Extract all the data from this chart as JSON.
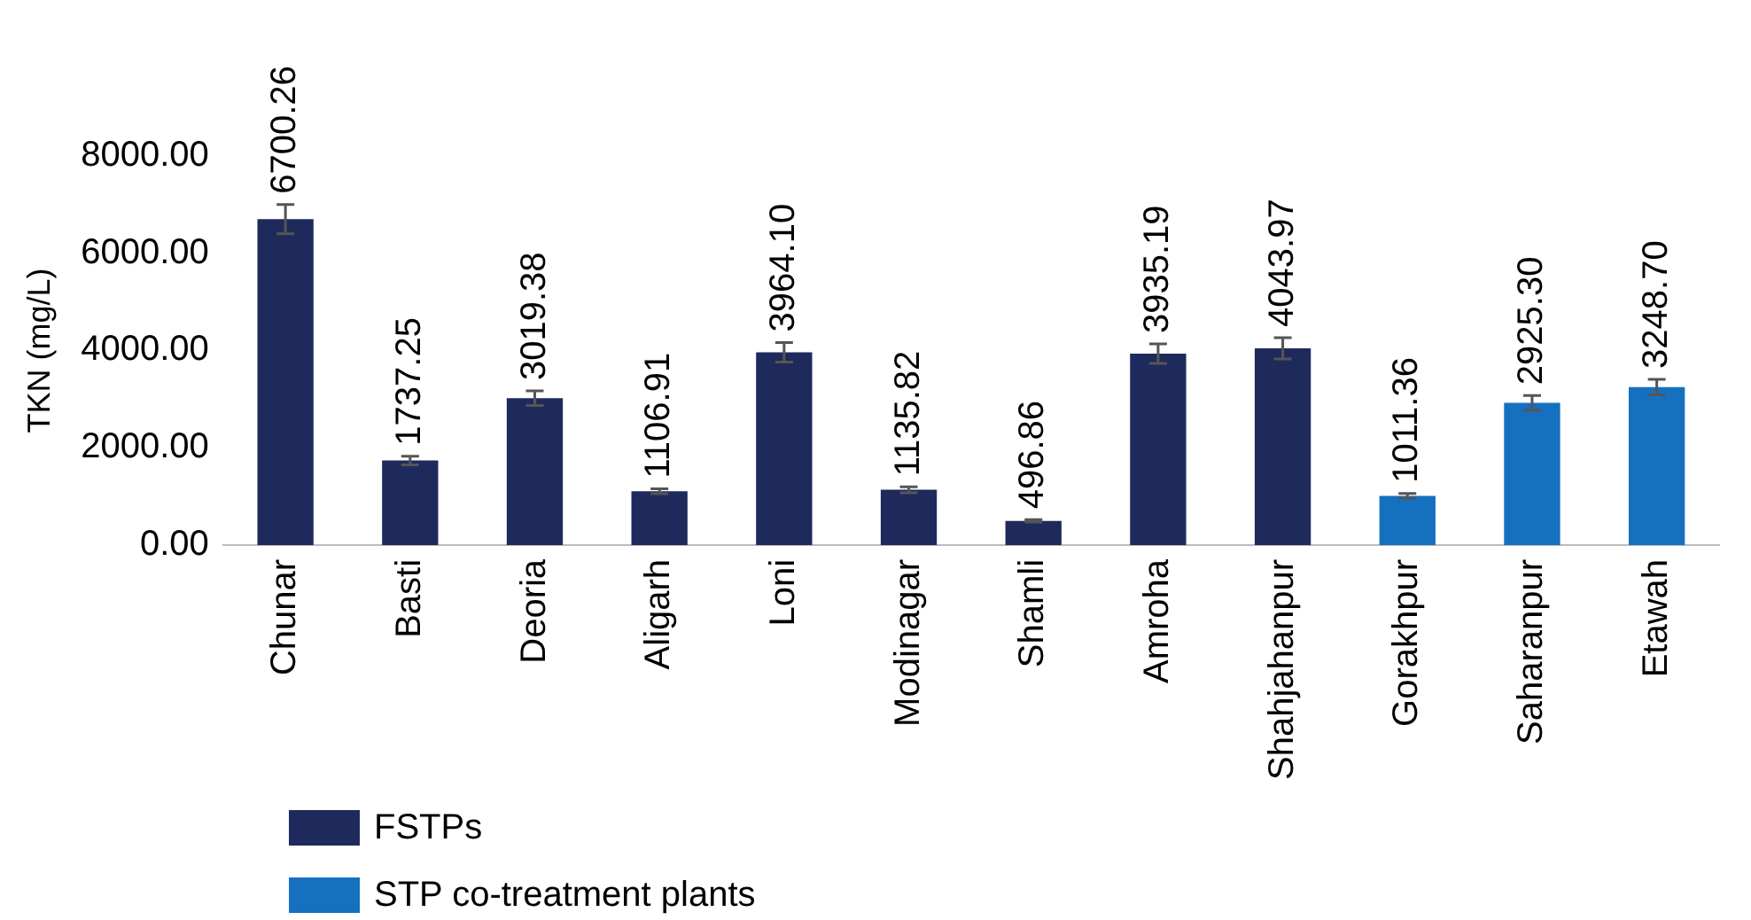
{
  "chart_data": {
    "type": "bar",
    "ylabel": "TKN (mg/L)",
    "categories": [
      "Chunar",
      "Basti",
      "Deoria",
      "Aligarh",
      "Loni",
      "Modinagar",
      "Shamli",
      "Amroha",
      "Shahjahanpur",
      "Gorakhpur",
      "Saharanpur",
      "Etawah"
    ],
    "series": [
      {
        "name": "FSTPs",
        "color": "#1f2a5c",
        "values": [
          6700.26,
          1737.25,
          3019.38,
          1106.91,
          3964.1,
          1135.82,
          496.86,
          3935.19,
          4043.97,
          null,
          null,
          null
        ],
        "errors": [
          300,
          90,
          150,
          50,
          200,
          60,
          25,
          200,
          220,
          null,
          null,
          null
        ],
        "value_labels": [
          "6700.26",
          "1737.25",
          "3019.38",
          "1106.91",
          "3964.10",
          "1135.82",
          "496.86",
          "3935.19",
          "4043.97",
          null,
          null,
          null
        ]
      },
      {
        "name": "STP co-treatment plants",
        "color": "#1570c0",
        "values": [
          null,
          null,
          null,
          null,
          null,
          null,
          null,
          null,
          null,
          1011.36,
          2925.3,
          3248.7
        ],
        "errors": [
          null,
          null,
          null,
          null,
          null,
          null,
          null,
          null,
          null,
          50,
          150,
          160
        ],
        "value_labels": [
          null,
          null,
          null,
          null,
          null,
          null,
          null,
          null,
          null,
          "1011.36",
          "2925.30",
          "3248.70"
        ]
      }
    ],
    "ylim": [
      0,
      8000
    ],
    "yticks": [
      {
        "value": 0,
        "label": "0.00"
      },
      {
        "value": 2000,
        "label": "2000.00"
      },
      {
        "value": 4000,
        "label": "4000.00"
      },
      {
        "value": 6000,
        "label": "6000.00"
      },
      {
        "value": 8000,
        "label": "8000.00"
      }
    ],
    "grid": false,
    "legend": "bottom left"
  }
}
